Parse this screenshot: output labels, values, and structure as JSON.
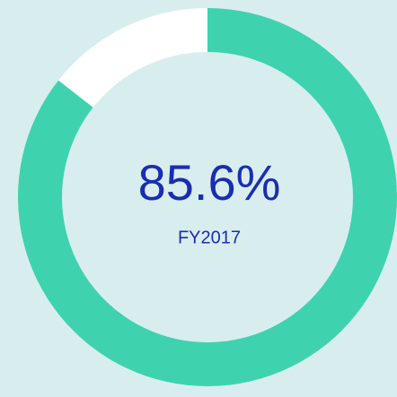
{
  "chart_data": {
    "type": "donut",
    "values": [
      85.6,
      14.4
    ],
    "value_labels": [
      "85.6%",
      null
    ],
    "colors": [
      "#3ed3ae",
      "#ffffff"
    ],
    "label": "FY2017"
  }
}
